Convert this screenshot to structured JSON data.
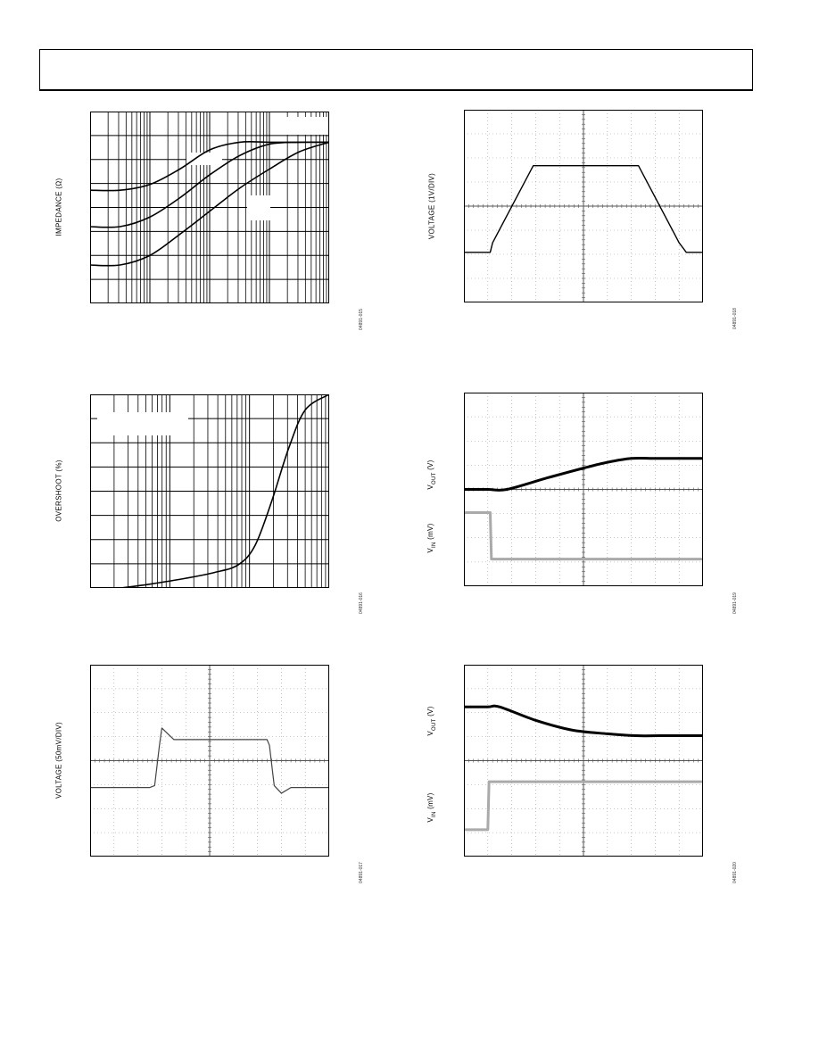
{
  "page": {
    "header_text": ""
  },
  "chart_data": [
    {
      "id": "impedance",
      "type": "line",
      "ylabel": "IMPEDANCE (Ω)",
      "figure_code": "04891-015",
      "xscale": "log",
      "grid": true,
      "series": [
        {
          "values": [
            0.59,
            0.59,
            0.62,
            0.7,
            0.8,
            0.84,
            0.84,
            0.84,
            0.84
          ]
        },
        {
          "values": [
            0.4,
            0.4,
            0.45,
            0.55,
            0.67,
            0.77,
            0.83,
            0.84,
            0.84
          ]
        },
        {
          "values": [
            0.2,
            0.2,
            0.25,
            0.36,
            0.48,
            0.6,
            0.7,
            0.79,
            0.84
          ]
        }
      ]
    },
    {
      "id": "overshoot",
      "type": "line",
      "ylabel": "OVERSHOOT (%)",
      "figure_code": "04891-016",
      "xscale": "log",
      "grid": true,
      "series": [
        {
          "values": [
            0.0,
            0.02,
            0.05,
            0.08,
            0.12,
            0.22,
            0.45,
            0.72,
            0.92,
            1.0
          ]
        }
      ]
    },
    {
      "id": "transient-50mv",
      "type": "line",
      "ylabel": "VOLTAGE (50mV/DIV)",
      "figure_code": "04891-017",
      "grid": "dotted",
      "series": [
        {
          "values": [
            0.36,
            0.36,
            0.37,
            0.58,
            0.67,
            0.61,
            0.61,
            0.61,
            0.61,
            0.58,
            0.37,
            0.33,
            0.36,
            0.36,
            0.36
          ]
        }
      ]
    },
    {
      "id": "transient-1v",
      "type": "line",
      "ylabel": "VOLTAGE (1V/DIV)",
      "figure_code": "04891-018",
      "grid": "dotted",
      "series": [
        {
          "values": [
            0.26,
            0.26,
            0.31,
            0.71,
            0.71,
            0.71,
            0.71,
            0.71,
            0.31,
            0.26,
            0.26
          ]
        }
      ]
    },
    {
      "id": "load-transient-up",
      "type": "line",
      "ylabel_top": "VOUT (V)",
      "ylabel_bottom": "VIN (mV)",
      "figure_code": "04891-019",
      "grid": "dotted",
      "series": [
        {
          "values": [
            0.5,
            0.5,
            0.5,
            0.56,
            0.61,
            0.64,
            0.66,
            0.66,
            0.66,
            0.66
          ]
        },
        {
          "values": [
            0.38,
            0.38,
            0.14,
            0.14,
            0.14,
            0.14,
            0.14,
            0.14,
            0.14,
            0.14
          ]
        }
      ]
    },
    {
      "id": "load-transient-down",
      "type": "line",
      "ylabel_top": "VOUT (V)",
      "ylabel_bottom": "VIN (mV)",
      "figure_code": "04891-020",
      "grid": "dotted",
      "series": [
        {
          "values": [
            0.78,
            0.78,
            0.78,
            0.71,
            0.66,
            0.64,
            0.63,
            0.63,
            0.63,
            0.63
          ]
        },
        {
          "values": [
            0.14,
            0.14,
            0.39,
            0.39,
            0.39,
            0.39,
            0.39,
            0.39,
            0.39,
            0.39
          ]
        }
      ]
    }
  ]
}
